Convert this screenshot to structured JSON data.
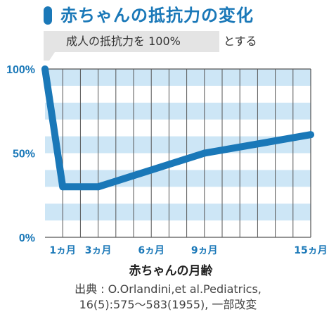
{
  "header": {
    "title": "赤ちゃんの抵抗力の変化",
    "subtitle_boxed": "成人の抵抗力を 100%",
    "subtitle_tail": "とする"
  },
  "colors": {
    "accent": "#1a78b8",
    "band": "#cde6f6",
    "grid": "#555555"
  },
  "chart_data": {
    "type": "line",
    "title": "赤ちゃんの抵抗力の変化",
    "xlabel": "赤ちゃんの月齢",
    "ylabel": "",
    "x": [
      0,
      1,
      3,
      9,
      15
    ],
    "series": [
      {
        "values": [
          100,
          30,
          30,
          50,
          61
        ]
      }
    ],
    "xlim": [
      0,
      15
    ],
    "ylim": [
      0,
      100
    ],
    "x_gridlines": [
      1,
      2,
      3,
      4,
      5,
      6,
      7,
      8,
      9,
      10,
      11,
      12,
      13,
      14,
      15
    ],
    "y_ticks": [
      {
        "value": 100,
        "label": "100%"
      },
      {
        "value": 50,
        "label": "50%"
      },
      {
        "value": 0,
        "label": "0%"
      }
    ],
    "x_ticks": [
      {
        "value": 1,
        "label": "1ヵ月"
      },
      {
        "value": 3,
        "label": "3ヵ月"
      },
      {
        "value": 6,
        "label": "6ヵ月"
      },
      {
        "value": 9,
        "label": "9ヵ月"
      },
      {
        "value": 15,
        "label": "15ヵ月"
      }
    ],
    "grid": true,
    "background": "horizontal-stripes"
  },
  "footer": {
    "source_line1": "出典 : O.Orlandini,et al.Pediatrics,",
    "source_line2": "16(5):575〜583(1955), 一部改変"
  }
}
